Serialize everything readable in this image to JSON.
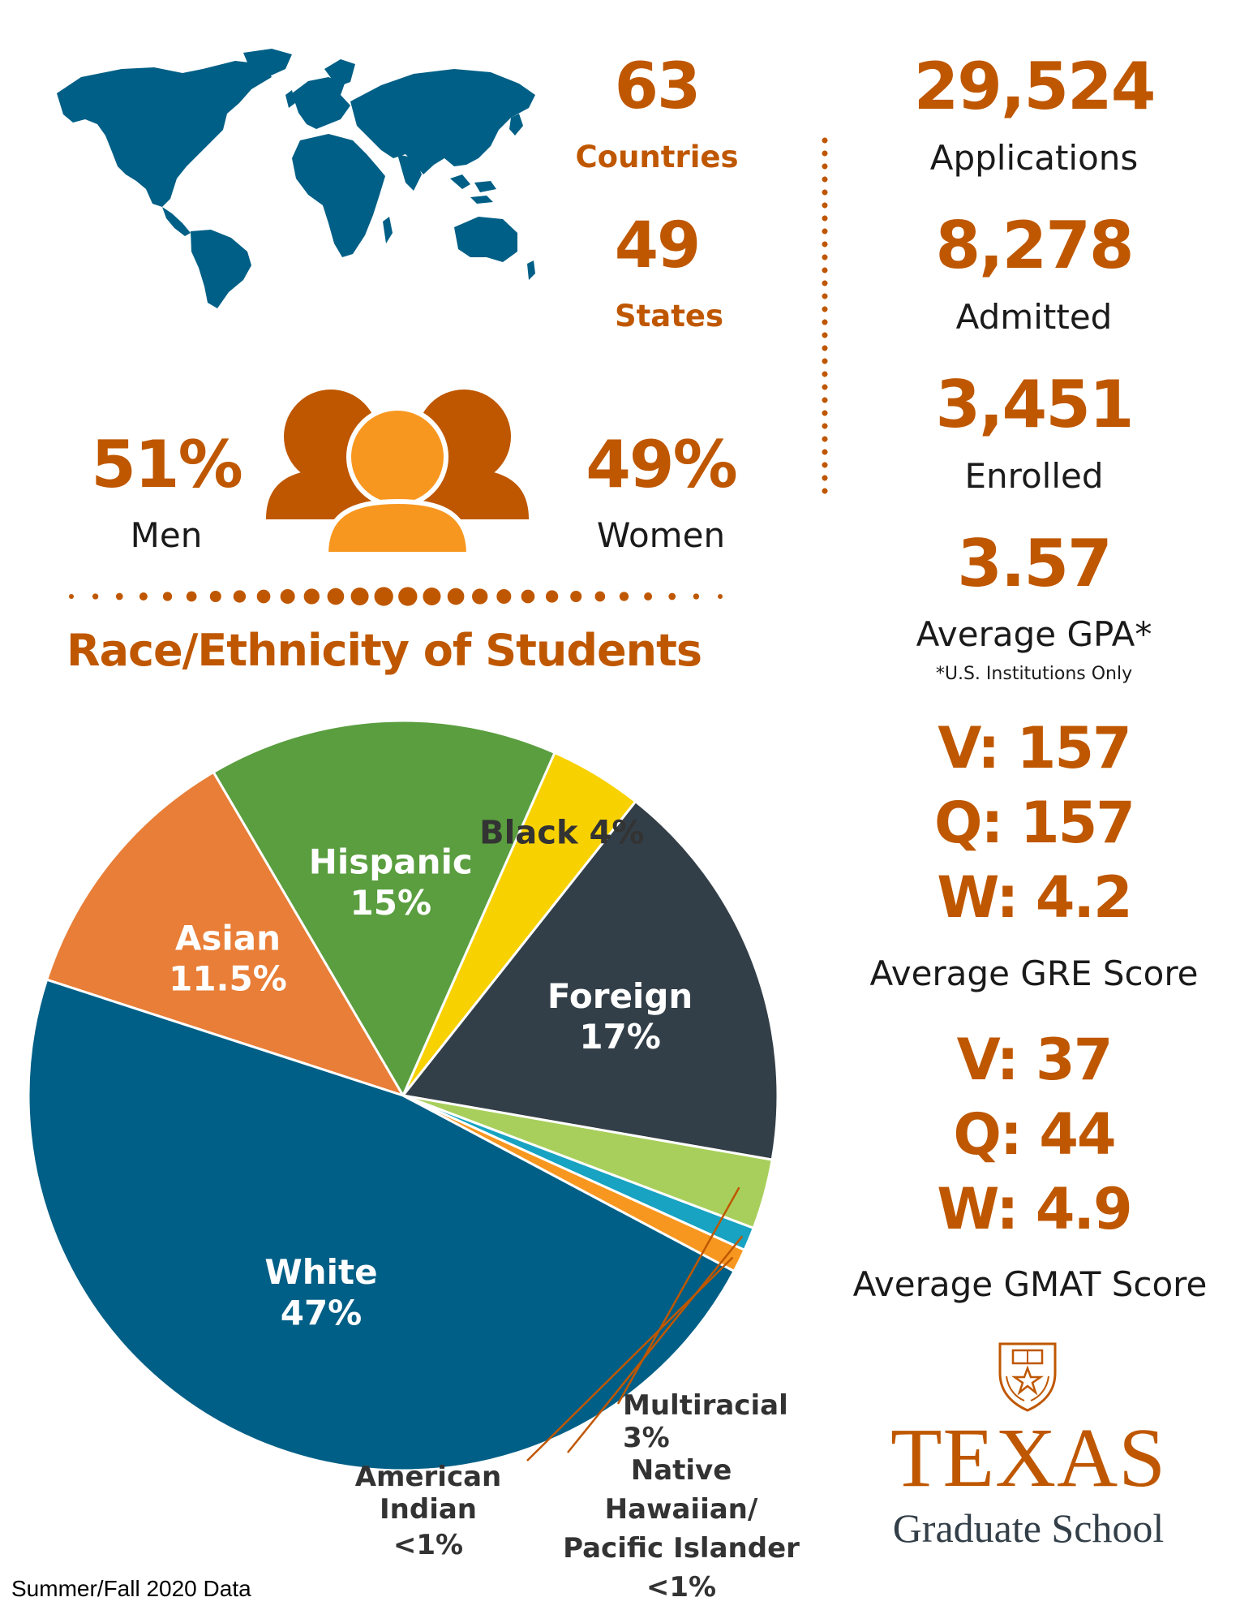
{
  "colors": {
    "brand": "#bf5700",
    "text": "#1a1a1a",
    "map": "#005f86"
  },
  "stats": {
    "countries": {
      "value": "63",
      "label": "Countries"
    },
    "states": {
      "value": "49",
      "label": "States"
    },
    "men": {
      "value": "51%",
      "label": "Men"
    },
    "women": {
      "value": "49%",
      "label": "Women"
    },
    "applications": {
      "value": "29,524",
      "label": "Applications"
    },
    "admitted": {
      "value": "8,278",
      "label": "Admitted"
    },
    "enrolled": {
      "value": "3,451",
      "label": "Enrolled"
    },
    "gpa": {
      "value": "3.57",
      "label": "Average GPA*",
      "note": "*U.S. Institutions Only"
    },
    "gre": {
      "v": "V: 157",
      "q": "Q: 157",
      "w": "W: 4.2",
      "label": "Average GRE Score"
    },
    "gmat": {
      "v": "V: 37",
      "q": "Q: 44",
      "w": "W: 4.9",
      "label": "Average GMAT Score"
    }
  },
  "icons": {
    "map": "world-map-icon",
    "people": "people-group-icon",
    "seal": "university-seal-icon"
  },
  "logo": {
    "title": "TEXAS",
    "subtitle": "Graduate School"
  },
  "footer": "Summer/Fall 2020 Data",
  "chart_data": {
    "type": "pie",
    "title": "Race/Ethnicity of Students",
    "slices": [
      {
        "name": "Asian",
        "label": "11.5%",
        "value": 11.5,
        "color": "#e87e37"
      },
      {
        "name": "Hispanic",
        "label": "15%",
        "value": 15,
        "color": "#5a9e3f"
      },
      {
        "name": "Black",
        "label": "4%",
        "value": 4,
        "color": "#f8d100"
      },
      {
        "name": "Foreign",
        "label": "17%",
        "value": 17,
        "color": "#333f48"
      },
      {
        "name": "Multiracial",
        "label": "3%",
        "value": 3,
        "color": "#a8cf5c"
      },
      {
        "name": "Native Hawaiian/ Pacific Islander",
        "label": "<1%",
        "value": 1,
        "color": "#17a3c1"
      },
      {
        "name": "American Indian",
        "label": "<1%",
        "value": 1,
        "color": "#f8971f"
      },
      {
        "name": "White",
        "label": "47%",
        "value": 47,
        "color": "#005f86"
      }
    ]
  }
}
